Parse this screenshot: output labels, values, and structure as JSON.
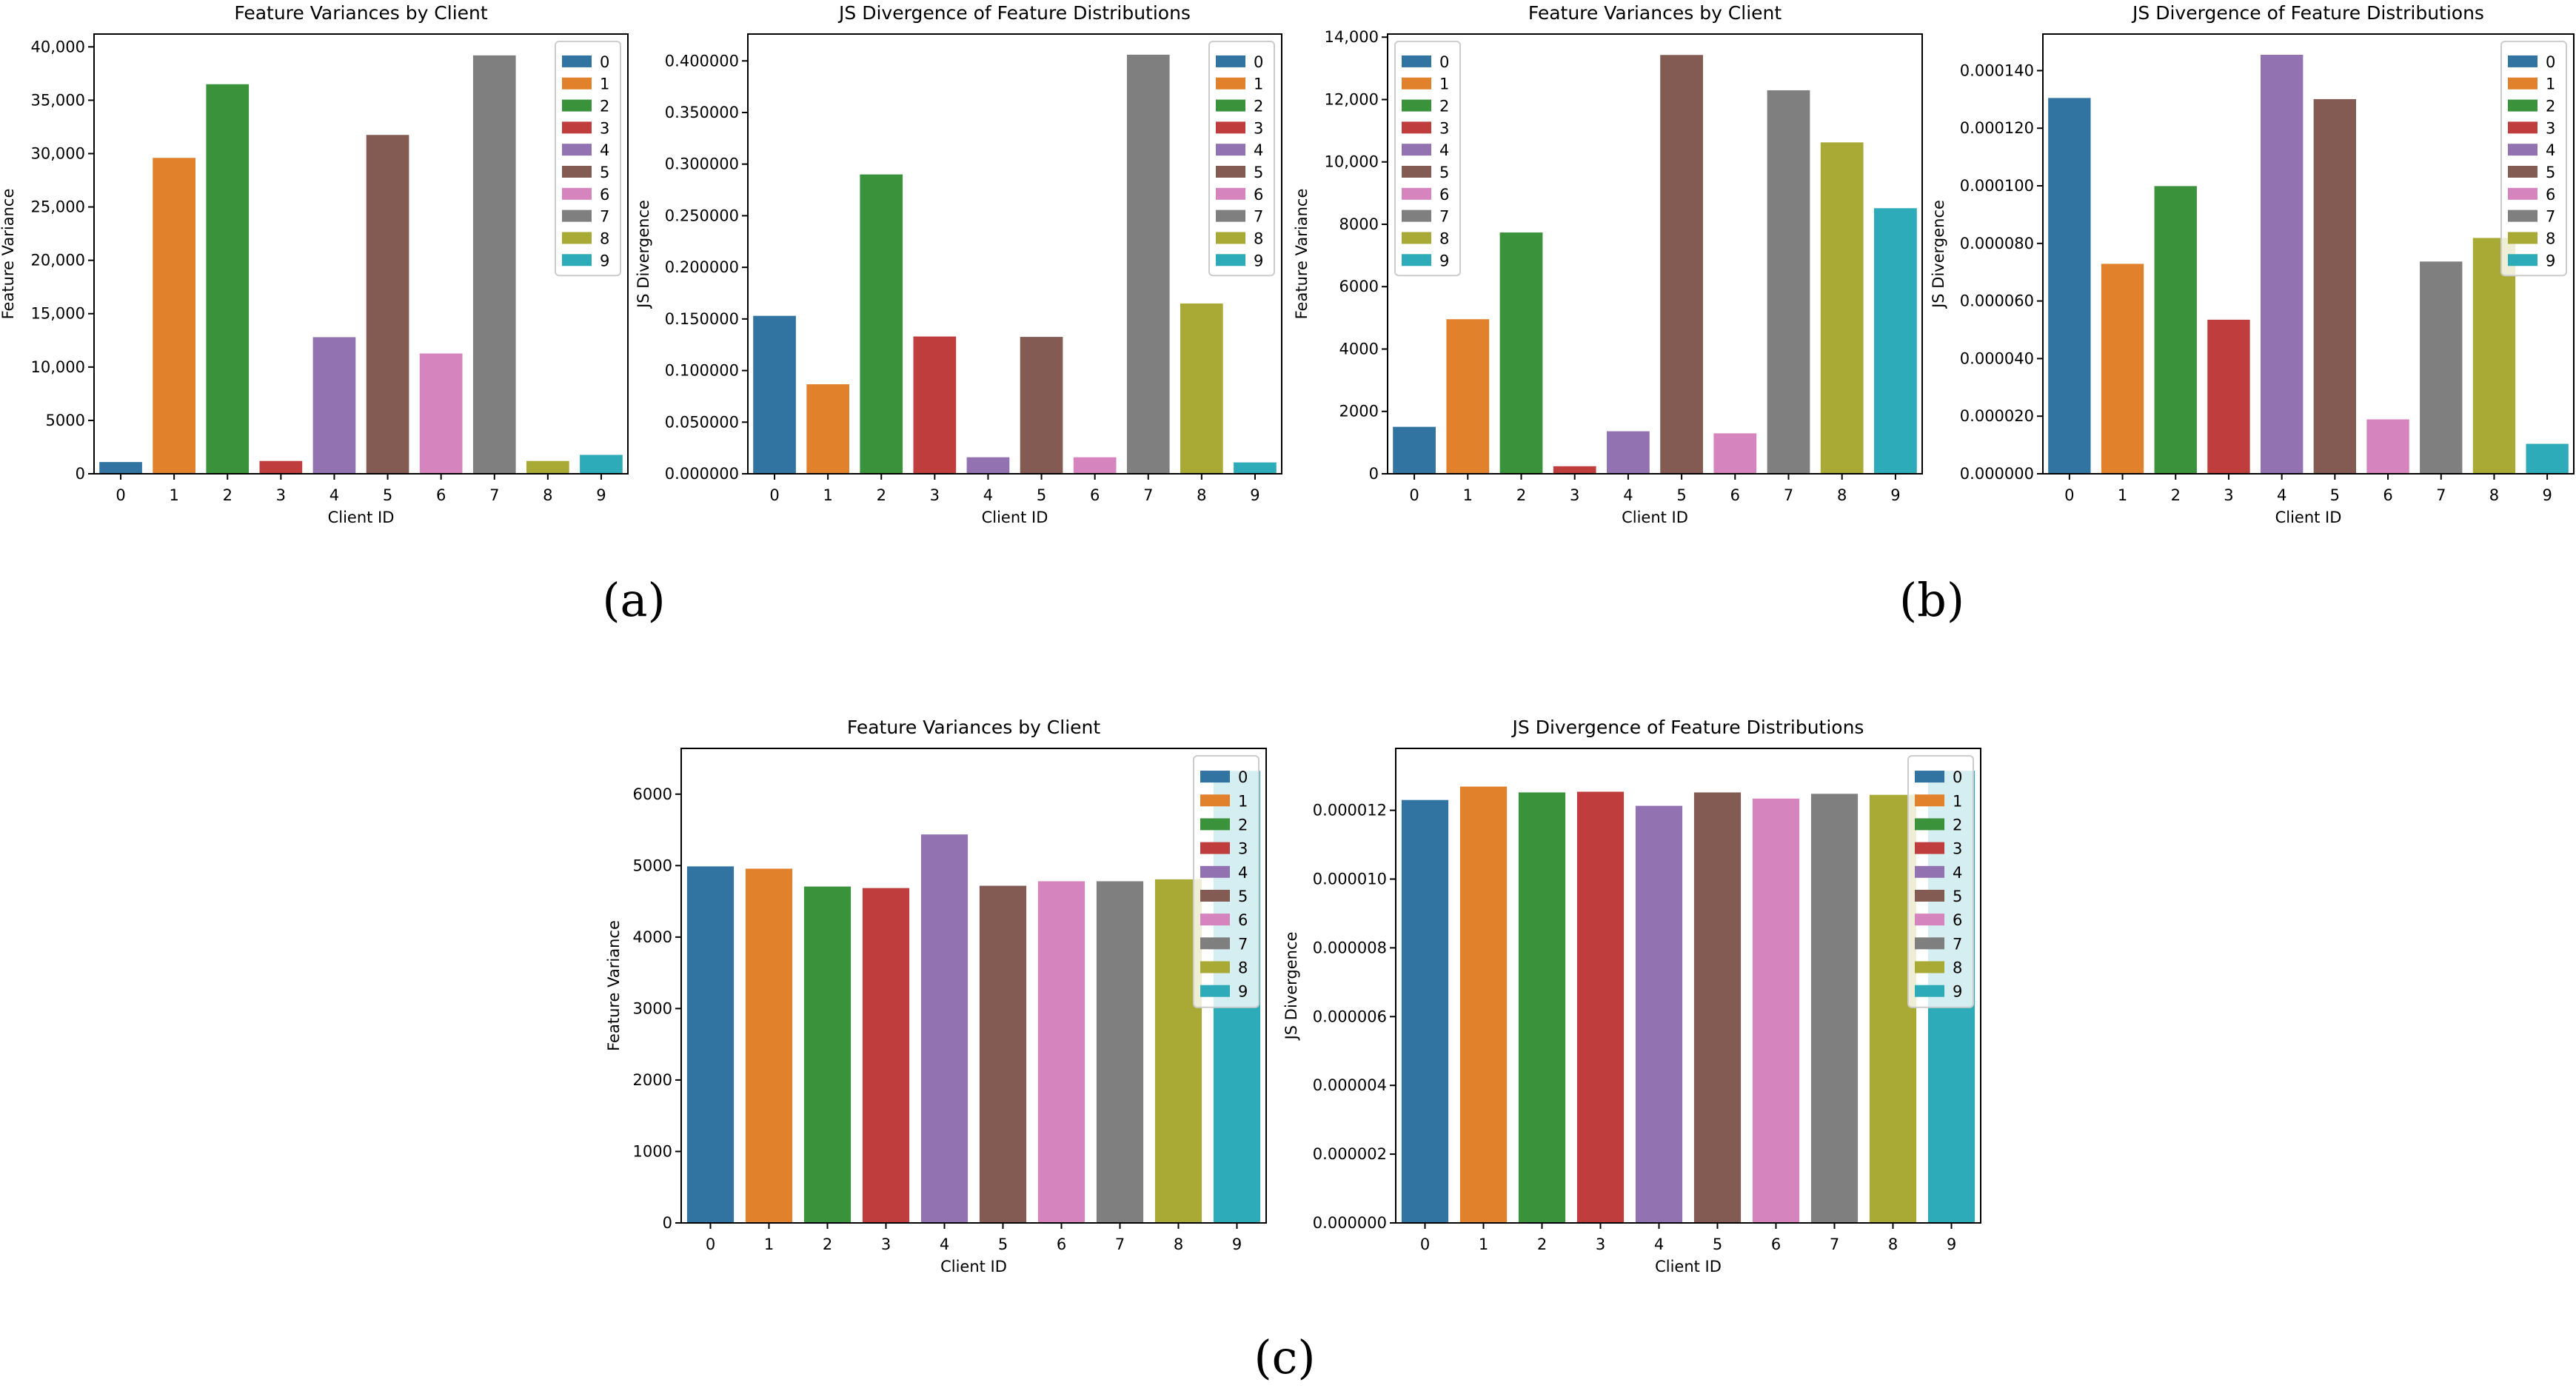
{
  "panel_labels": [
    "(a)",
    "(b)",
    "(c)"
  ],
  "colors": [
    "#3274a1",
    "#e1812c",
    "#3a923a",
    "#c03d3e",
    "#9372b2",
    "#845b53",
    "#d684bd",
    "#7f7f7f",
    "#a9aa35",
    "#2eabb8"
  ],
  "chart_data": [
    {
      "type": "bar",
      "panel": "(a)",
      "title": "Feature Variances by Client",
      "xlabel": "Client ID",
      "ylabel": "Feature Variance",
      "categories": [
        "0",
        "1",
        "2",
        "3",
        "4",
        "5",
        "6",
        "7",
        "8",
        "9"
      ],
      "values": [
        1100,
        29600,
        36500,
        1200,
        12800,
        31750,
        11270,
        39200,
        1200,
        1770
      ],
      "ylim": [
        0,
        41200
      ],
      "yticks": [
        0,
        5000,
        10000,
        15000,
        20000,
        25000,
        30000,
        35000,
        40000
      ],
      "ytick_labels": [
        "0",
        "5000",
        "10,000",
        "15,000",
        "20,000",
        "25,000",
        "30,000",
        "35,000",
        "40,000"
      ],
      "legend": [
        "0",
        "1",
        "2",
        "3",
        "4",
        "5",
        "6",
        "7",
        "8",
        "9"
      ],
      "legend_loc": "upper right",
      "grid": false
    },
    {
      "type": "bar",
      "panel": "(a)",
      "title": "JS Divergence of Feature Distributions",
      "xlabel": "Client ID",
      "ylabel": "JS Divergence",
      "categories": [
        "0",
        "1",
        "2",
        "3",
        "4",
        "5",
        "6",
        "7",
        "8",
        "9"
      ],
      "values": [
        0.153,
        0.0867,
        0.29,
        0.133,
        0.016,
        0.1326,
        0.016,
        0.406,
        0.165,
        0.011
      ],
      "ylim": [
        0,
        0.426
      ],
      "yticks": [
        0,
        0.05,
        0.1,
        0.15,
        0.2,
        0.25,
        0.3,
        0.35,
        0.4
      ],
      "ytick_labels": [
        "0.000000",
        "0.050000",
        "0.100000",
        "0.150000",
        "0.200000",
        "0.250000",
        "0.300000",
        "0.350000",
        "0.400000"
      ],
      "legend": [
        "0",
        "1",
        "2",
        "3",
        "4",
        "5",
        "6",
        "7",
        "8",
        "9"
      ],
      "legend_loc": "upper right",
      "grid": false
    },
    {
      "type": "bar",
      "panel": "(b)",
      "title": "Feature Variances by Client",
      "xlabel": "Client ID",
      "ylabel": "Feature Variance",
      "categories": [
        "0",
        "1",
        "2",
        "3",
        "4",
        "5",
        "6",
        "7",
        "8",
        "9"
      ],
      "values": [
        1505,
        4956,
        7736,
        242,
        1363,
        13429,
        1297,
        12297,
        10626,
        8516
      ],
      "ylim": [
        0,
        14100
      ],
      "yticks": [
        0,
        2000,
        4000,
        6000,
        8000,
        10000,
        12000,
        14000
      ],
      "ytick_labels": [
        "0",
        "2000",
        "4000",
        "6000",
        "8000",
        "10,000",
        "12,000",
        "14,000"
      ],
      "legend": [
        "0",
        "1",
        "2",
        "3",
        "4",
        "5",
        "6",
        "7",
        "8",
        "9"
      ],
      "legend_loc": "upper left",
      "grid": false
    },
    {
      "type": "bar",
      "panel": "(b)",
      "title": "JS Divergence of Feature Distributions",
      "xlabel": "Client ID",
      "ylabel": "JS Divergence",
      "categories": [
        "0",
        "1",
        "2",
        "3",
        "4",
        "5",
        "6",
        "7",
        "8",
        "9"
      ],
      "values": [
        0.0001305,
        7.29e-05,
        9.99e-05,
        5.35e-05,
        0.0001455,
        0.0001301,
        1.89e-05,
        7.37e-05,
        8.19e-05,
        1.04e-05
      ],
      "ylim": [
        0,
        0.0001527
      ],
      "yticks": [
        0,
        2e-05,
        4e-05,
        6e-05,
        8e-05,
        0.0001,
        0.00012,
        0.00014
      ],
      "ytick_labels": [
        "0.000000",
        "0.000020",
        "0.000040",
        "0.000060",
        "0.000080",
        "0.000100",
        "0.000120",
        "0.000140"
      ],
      "legend": [
        "0",
        "1",
        "2",
        "3",
        "4",
        "5",
        "6",
        "7",
        "8",
        "9"
      ],
      "legend_loc": "upper right",
      "grid": false
    },
    {
      "type": "bar",
      "panel": "(c)",
      "title": "Feature Variances by Client",
      "xlabel": "Client ID",
      "ylabel": "Feature Variance",
      "categories": [
        "0",
        "1",
        "2",
        "3",
        "4",
        "5",
        "6",
        "7",
        "8",
        "9"
      ],
      "values": [
        4989,
        4957,
        4707,
        4686,
        5436,
        4718,
        4781,
        4781,
        4808,
        6325
      ],
      "ylim": [
        0,
        6640
      ],
      "yticks": [
        0,
        1000,
        2000,
        3000,
        4000,
        5000,
        6000
      ],
      "ytick_labels": [
        "0",
        "1000",
        "2000",
        "3000",
        "4000",
        "5000",
        "6000"
      ],
      "legend": [
        "0",
        "1",
        "2",
        "3",
        "4",
        "5",
        "6",
        "7",
        "8",
        "9"
      ],
      "legend_loc": "upper right",
      "grid": false
    },
    {
      "type": "bar",
      "panel": "(c)",
      "title": "JS Divergence of Feature Distributions",
      "xlabel": "Client ID",
      "ylabel": "JS Divergence",
      "categories": [
        "0",
        "1",
        "2",
        "3",
        "4",
        "5",
        "6",
        "7",
        "8",
        "9"
      ],
      "values": [
        1.23e-05,
        1.269e-05,
        1.252e-05,
        1.254e-05,
        1.213e-05,
        1.252e-05,
        1.234e-05,
        1.248e-05,
        1.245e-05,
        1.315e-05
      ],
      "ylim": [
        0,
        1.38e-05
      ],
      "yticks": [
        0,
        2e-06,
        4e-06,
        6e-06,
        8e-06,
        1e-05,
        1.2e-05
      ],
      "ytick_labels": [
        "0.000000",
        "0.000002",
        "0.000004",
        "0.000006",
        "0.000008",
        "0.000010",
        "0.000012"
      ],
      "legend": [
        "0",
        "1",
        "2",
        "3",
        "4",
        "5",
        "6",
        "7",
        "8",
        "9"
      ],
      "legend_loc": "upper right",
      "grid": false
    }
  ]
}
